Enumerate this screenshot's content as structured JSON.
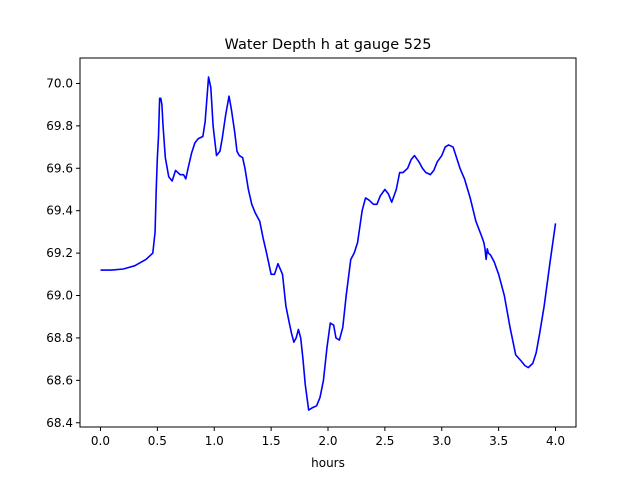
{
  "chart_data": {
    "type": "line",
    "title": "Water Depth h at gauge 525",
    "xlabel": "hours",
    "ylabel": "",
    "xlim": [
      -0.18,
      4.18
    ],
    "ylim": [
      68.38,
      70.12
    ],
    "xticks": [
      0.0,
      0.5,
      1.0,
      1.5,
      2.0,
      2.5,
      3.0,
      3.5,
      4.0
    ],
    "xtick_labels": [
      "0.0",
      "0.5",
      "1.0",
      "1.5",
      "2.0",
      "2.5",
      "3.0",
      "3.5",
      "4.0"
    ],
    "yticks": [
      68.4,
      68.6,
      68.8,
      69.0,
      69.2,
      69.4,
      69.6,
      69.8,
      70.0
    ],
    "ytick_labels": [
      "68.4",
      "68.6",
      "68.8",
      "69.0",
      "69.2",
      "69.4",
      "69.6",
      "69.8",
      "70.0"
    ],
    "grid": false,
    "series": [
      {
        "color": "#0000ff",
        "x": [
          0.0,
          0.1,
          0.2,
          0.3,
          0.4,
          0.46,
          0.48,
          0.49,
          0.5,
          0.51,
          0.52,
          0.53,
          0.54,
          0.55,
          0.57,
          0.6,
          0.63,
          0.66,
          0.7,
          0.73,
          0.75,
          0.77,
          0.8,
          0.83,
          0.86,
          0.9,
          0.92,
          0.95,
          0.97,
          0.99,
          1.02,
          1.05,
          1.07,
          1.1,
          1.13,
          1.15,
          1.18,
          1.2,
          1.22,
          1.25,
          1.27,
          1.3,
          1.33,
          1.36,
          1.4,
          1.43,
          1.46,
          1.5,
          1.53,
          1.56,
          1.6,
          1.63,
          1.66,
          1.68,
          1.7,
          1.72,
          1.74,
          1.76,
          1.78,
          1.8,
          1.83,
          1.86,
          1.9,
          1.93,
          1.96,
          1.99,
          2.02,
          2.05,
          2.07,
          2.1,
          2.13,
          2.16,
          2.2,
          2.23,
          2.26,
          2.3,
          2.33,
          2.36,
          2.4,
          2.43,
          2.46,
          2.5,
          2.53,
          2.56,
          2.6,
          2.63,
          2.66,
          2.7,
          2.73,
          2.76,
          2.8,
          2.83,
          2.86,
          2.9,
          2.93,
          2.96,
          3.0,
          3.03,
          3.06,
          3.1,
          3.13,
          3.16,
          3.2,
          3.25,
          3.3,
          3.35,
          3.37,
          3.38,
          3.39,
          3.4,
          3.41,
          3.43,
          3.46,
          3.5,
          3.55,
          3.6,
          3.65,
          3.7,
          3.73,
          3.76,
          3.8,
          3.83,
          3.86,
          3.9,
          3.95,
          4.0
        ],
        "y": [
          69.12,
          69.12,
          69.125,
          69.14,
          69.17,
          69.2,
          69.3,
          69.5,
          69.65,
          69.75,
          69.93,
          69.93,
          69.9,
          69.8,
          69.65,
          69.56,
          69.54,
          69.59,
          69.57,
          69.57,
          69.55,
          69.6,
          69.67,
          69.72,
          69.74,
          69.75,
          69.82,
          70.03,
          69.98,
          69.8,
          69.66,
          69.68,
          69.74,
          69.85,
          69.94,
          69.88,
          69.77,
          69.68,
          69.66,
          69.65,
          69.6,
          69.5,
          69.43,
          69.39,
          69.35,
          69.27,
          69.2,
          69.1,
          69.1,
          69.15,
          69.1,
          68.95,
          68.87,
          68.82,
          68.78,
          68.8,
          68.84,
          68.8,
          68.7,
          68.58,
          68.46,
          68.47,
          68.48,
          68.52,
          68.6,
          68.75,
          68.87,
          68.86,
          68.8,
          68.79,
          68.85,
          69.0,
          69.17,
          69.2,
          69.25,
          69.4,
          69.46,
          69.45,
          69.43,
          69.43,
          69.47,
          69.5,
          69.48,
          69.44,
          69.5,
          69.58,
          69.58,
          69.6,
          69.64,
          69.66,
          69.63,
          69.6,
          69.58,
          69.57,
          69.59,
          69.63,
          69.66,
          69.7,
          69.71,
          69.7,
          69.65,
          69.6,
          69.55,
          69.46,
          69.35,
          69.28,
          69.25,
          69.22,
          69.17,
          69.22,
          69.2,
          69.19,
          69.16,
          69.1,
          69.0,
          68.85,
          68.72,
          68.69,
          68.67,
          68.66,
          68.68,
          68.73,
          68.82,
          68.95,
          69.15,
          69.34
        ]
      }
    ]
  }
}
